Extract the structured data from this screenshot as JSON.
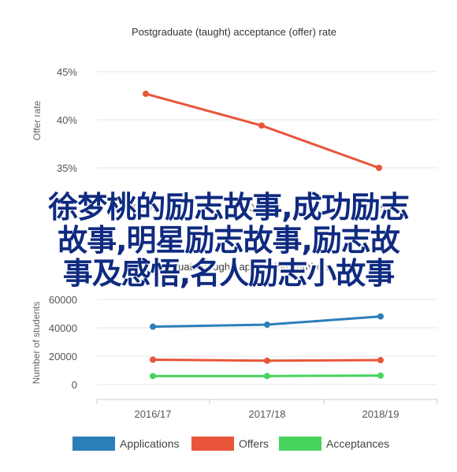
{
  "chart_data": [
    {
      "type": "line",
      "title": "Postgraduate (taught) acceptance (offer) rate",
      "ylabel": "Offer rate",
      "categories": [
        "2016/17",
        "2017/18",
        "2018/19"
      ],
      "series": [
        {
          "values": [
            42.7,
            39.4,
            35.0
          ],
          "color": "#e8553a"
        }
      ],
      "y_ticks": [
        "35%",
        "40%",
        "45%"
      ],
      "ylim": [
        34,
        46
      ],
      "grid": true
    },
    {
      "type": "line",
      "title": "Postgraduate (taught) application numbers",
      "ylabel": "Number of students",
      "categories": [
        "2016/17",
        "2017/18",
        "2018/19"
      ],
      "series": [
        {
          "name": "Applications",
          "values": [
            40800,
            42200,
            48000
          ],
          "color": "#2b7fb8"
        },
        {
          "name": "Offers",
          "values": [
            17500,
            16800,
            17200
          ],
          "color": "#e8553a"
        },
        {
          "name": "Acceptances",
          "values": [
            6000,
            6000,
            6300
          ],
          "color": "#46d45e"
        }
      ],
      "y_ticks": [
        "0",
        "20000",
        "40000",
        "60000"
      ],
      "ylim": [
        0,
        65000
      ],
      "grid": true,
      "legend": "bottom"
    }
  ],
  "overlay": {
    "lines": [
      "徐梦桃的励志故事,成功励志",
      "故事,明星励志故事,励志故",
      "事及感悟,名人励志小故事"
    ]
  }
}
